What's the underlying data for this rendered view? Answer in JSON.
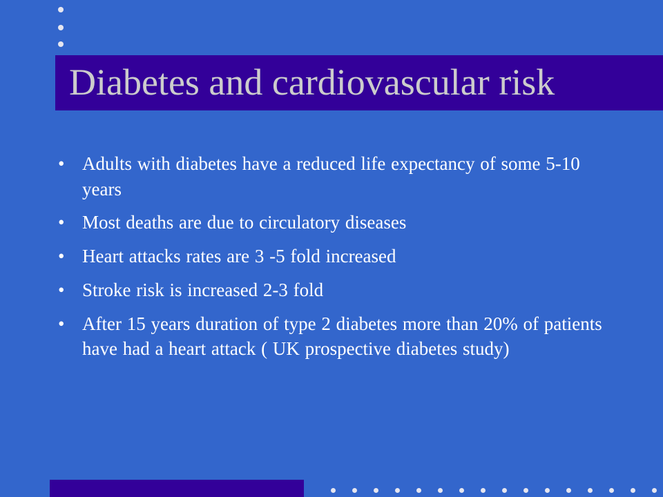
{
  "slide": {
    "title": "Diabetes and cardiovascular risk",
    "bullet_symbol": "•",
    "bullets": [
      "Adults with diabetes have a reduced life expectancy of some 5-10 years",
      "Most deaths are due to circulatory diseases",
      "Heart attacks rates are 3 -5 fold increased",
      "Stroke risk is increased 2-3 fold",
      "After 15 years duration of type 2 diabetes more than 20% of patients have had a heart attack ( UK prospective diabetes study)"
    ]
  },
  "colors": {
    "background": "#3366cc",
    "title_bar": "#330099",
    "title_text": "#cccccc",
    "body_text": "#ffffff",
    "decor_dots": "#e6e6f0"
  }
}
